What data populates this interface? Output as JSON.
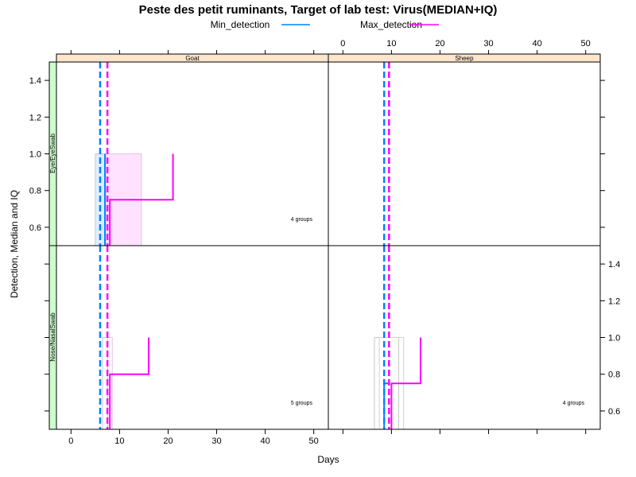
{
  "chart_data": {
    "type": "line",
    "title": "Peste des petit ruminants, Target of lab test: Virus(MEDIAN+IQ)",
    "xlabel": "Days",
    "ylabel": "Detection, Median and IQ",
    "xlim": [
      -3,
      53
    ],
    "ylim": [
      0.5,
      1.5
    ],
    "x_ticks": [
      0,
      10,
      20,
      30,
      40,
      50
    ],
    "y_ticks": [
      0.6,
      0.8,
      1.0,
      1.2,
      1.4
    ],
    "legend_position": "top",
    "series": [
      {
        "name": "Min_detection",
        "color": "#0080ff"
      },
      {
        "name": "Max_detection",
        "color": "#ff00ff"
      }
    ],
    "columns": [
      "Goat",
      "Sheep"
    ],
    "rows": [
      "Eye/EyeSwab",
      "Nose/NasalSwab"
    ],
    "panels": [
      {
        "column": "Goat",
        "row": "Eye/EyeSwab",
        "groups_label": "4 groups",
        "min_iq": [
          5.0,
          7.0
        ],
        "max_iq": [
          7.0,
          14.5
        ],
        "iq_top": 1.0,
        "min_step": [
          [
            7,
            0.5
          ],
          [
            7,
            1.0
          ]
        ],
        "max_step": [
          [
            8,
            0.5
          ],
          [
            8,
            0.75
          ],
          [
            21,
            0.75
          ],
          [
            21,
            1.0
          ]
        ],
        "min_median": 6.0,
        "max_median": 7.5
      },
      {
        "column": "Sheep",
        "row": "Eye/EyeSwab",
        "groups_label": "",
        "min_iq": null,
        "max_iq": null,
        "iq_top": null,
        "min_step": [],
        "max_step": [],
        "min_median": 8.5,
        "max_median": 9.5
      },
      {
        "column": "Goat",
        "row": "Nose/NasalSwab",
        "groups_label": "5 groups",
        "min_iq": [
          6.5,
          7.5
        ],
        "max_iq": [
          7.5,
          8.5
        ],
        "iq_top": 1.0,
        "min_step": [],
        "max_step": [
          [
            8,
            0.5
          ],
          [
            8,
            0.8
          ],
          [
            16,
            0.8
          ],
          [
            16,
            1.0
          ]
        ],
        "min_median": 6.0,
        "max_median": 7.5
      },
      {
        "column": "Sheep",
        "row": "Nose/NasalSwab",
        "groups_label": "4 groups",
        "min_iq": [
          6.5,
          11.5
        ],
        "max_iq": [
          7.5,
          12.5
        ],
        "iq_top": 1.0,
        "min_step": [
          [
            8.5,
            0.5
          ],
          [
            8.5,
            0.75
          ],
          [
            9.5,
            0.75
          ]
        ],
        "max_step": [
          [
            10,
            0.5
          ],
          [
            10,
            0.75
          ],
          [
            16,
            0.75
          ],
          [
            16,
            1.0
          ]
        ],
        "min_median": 8.5,
        "max_median": 9.5
      }
    ]
  }
}
